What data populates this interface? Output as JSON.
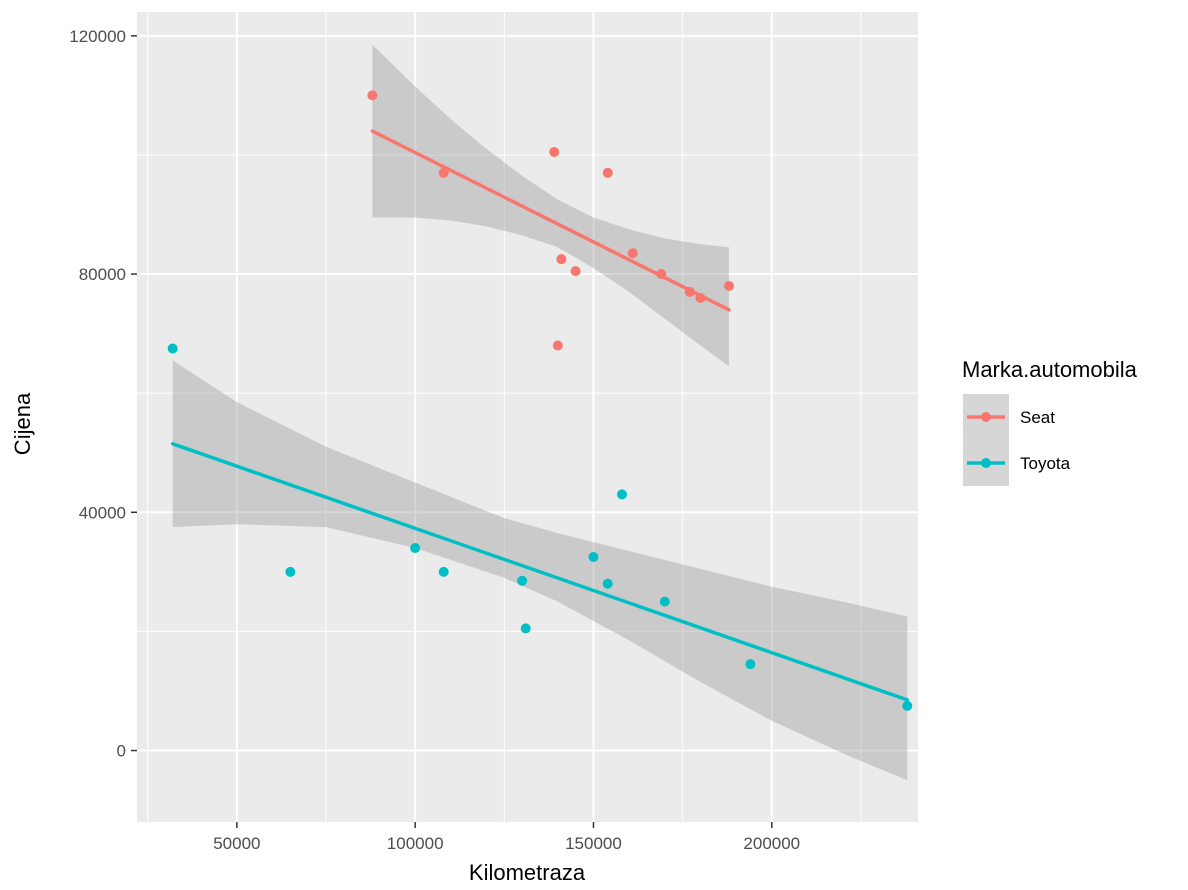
{
  "chart_data": {
    "type": "scatter",
    "title": "",
    "xlabel": "Kilometraza",
    "ylabel": "Cijena",
    "xlim": [
      22000,
      241000
    ],
    "ylim": [
      -12000,
      124000
    ],
    "x_ticks": [
      50000,
      100000,
      150000,
      200000
    ],
    "x_tick_labels": [
      "50000",
      "100000",
      "150000",
      "200000"
    ],
    "x_minor_ticks": [
      25000,
      75000,
      125000,
      175000,
      225000
    ],
    "y_ticks": [
      0,
      40000,
      80000,
      120000
    ],
    "y_tick_labels": [
      "0",
      "40000",
      "80000",
      "120000"
    ],
    "y_minor_ticks": [
      20000,
      60000,
      100000
    ],
    "grid": true,
    "legend": {
      "title": "Marka.automobila",
      "placement": "right"
    },
    "colors": {
      "panel": "#ebebeb",
      "grid": "#ffffff",
      "band": "#999999",
      "band_opacity": 0.4
    },
    "series": [
      {
        "name": "Seat",
        "color": "#f8766d",
        "points": [
          {
            "x": 88000,
            "y": 110000
          },
          {
            "x": 108000,
            "y": 97000
          },
          {
            "x": 139000,
            "y": 100500
          },
          {
            "x": 140000,
            "y": 68000
          },
          {
            "x": 141000,
            "y": 82500
          },
          {
            "x": 145000,
            "y": 80500
          },
          {
            "x": 154000,
            "y": 97000
          },
          {
            "x": 161000,
            "y": 83500
          },
          {
            "x": 169000,
            "y": 80000
          },
          {
            "x": 177000,
            "y": 77000
          },
          {
            "x": 180000,
            "y": 76000
          },
          {
            "x": 188000,
            "y": 78000
          }
        ],
        "fit": {
          "x": [
            88000,
            188000
          ],
          "y": [
            104000,
            74000
          ]
        },
        "band": {
          "x": [
            88000,
            100000,
            110000,
            120000,
            130000,
            140000,
            150000,
            160000,
            170000,
            180000,
            188000
          ],
          "upper": [
            118500,
            111500,
            106000,
            101000,
            96500,
            92500,
            89500,
            87500,
            86000,
            85000,
            84500
          ],
          "lower": [
            89500,
            89500,
            89000,
            88000,
            86500,
            84500,
            81000,
            77000,
            72500,
            68000,
            64500
          ]
        }
      },
      {
        "name": "Toyota",
        "color": "#00bfc4",
        "points": [
          {
            "x": 32000,
            "y": 67500
          },
          {
            "x": 65000,
            "y": 30000
          },
          {
            "x": 100000,
            "y": 34000
          },
          {
            "x": 108000,
            "y": 30000
          },
          {
            "x": 130000,
            "y": 28500
          },
          {
            "x": 131000,
            "y": 20500
          },
          {
            "x": 150000,
            "y": 32500
          },
          {
            "x": 154000,
            "y": 28000
          },
          {
            "x": 158000,
            "y": 43000
          },
          {
            "x": 170000,
            "y": 25000
          },
          {
            "x": 194000,
            "y": 14500
          },
          {
            "x": 238000,
            "y": 7500
          }
        ],
        "fit": {
          "x": [
            32000,
            238000
          ],
          "y": [
            51500,
            8500
          ]
        },
        "band": {
          "x": [
            32000,
            50000,
            75000,
            100000,
            125000,
            140000,
            160000,
            180000,
            200000,
            220000,
            238000
          ],
          "upper": [
            65500,
            58500,
            51000,
            45000,
            39000,
            36500,
            33500,
            30500,
            27500,
            25000,
            22500
          ],
          "lower": [
            37500,
            38000,
            37500,
            34000,
            29000,
            25000,
            18500,
            11500,
            5000,
            -500,
            -5000
          ]
        }
      }
    ]
  }
}
